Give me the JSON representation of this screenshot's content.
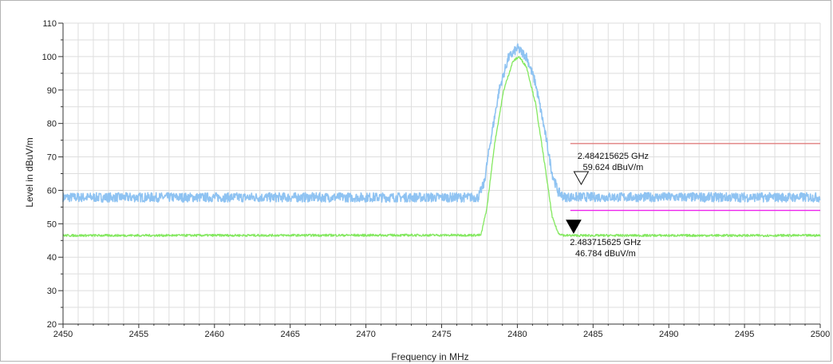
{
  "chart_data": {
    "type": "line",
    "xlabel": "Frequency in MHz",
    "ylabel": "Level in dBuV/m",
    "xlim": [
      2450,
      2500
    ],
    "ylim": [
      20,
      110
    ],
    "x_ticks": [
      "2450",
      "2455",
      "2460",
      "2465",
      "2470",
      "2475",
      "2480",
      "2485",
      "2490",
      "2495",
      "2500"
    ],
    "y_ticks": [
      "20",
      "30",
      "40",
      "50",
      "60",
      "70",
      "80",
      "90",
      "100",
      "110"
    ],
    "grid": true,
    "series": [
      {
        "color": "#8fc3f2",
        "noise_band": 1.4,
        "points": [
          [
            2450,
            57.9
          ],
          [
            2477.4,
            57.9
          ],
          [
            2477.8,
            62
          ],
          [
            2478.2,
            74
          ],
          [
            2478.8,
            90
          ],
          [
            2479.4,
            99.5
          ],
          [
            2480.0,
            102.5
          ],
          [
            2480.6,
            100
          ],
          [
            2481.2,
            92
          ],
          [
            2481.8,
            78
          ],
          [
            2482.3,
            65
          ],
          [
            2482.7,
            59.5
          ],
          [
            2483.1,
            58
          ],
          [
            2500,
            57.9
          ]
        ]
      },
      {
        "color": "#84e860",
        "noise_band": 0.35,
        "points": [
          [
            2450,
            46.5
          ],
          [
            2477.6,
            46.6
          ],
          [
            2478.0,
            55
          ],
          [
            2478.5,
            74
          ],
          [
            2479.1,
            90
          ],
          [
            2479.7,
            98.5
          ],
          [
            2480.1,
            100
          ],
          [
            2480.6,
            97
          ],
          [
            2481.2,
            86
          ],
          [
            2481.8,
            68
          ],
          [
            2482.3,
            52
          ],
          [
            2482.7,
            47.2
          ],
          [
            2483.1,
            46.5
          ],
          [
            2500,
            46.5
          ]
        ]
      }
    ],
    "limit_lines": [
      {
        "color": "#e07f7f",
        "x": [
          2483.5,
          2500
        ],
        "y": 74
      },
      {
        "color": "#ee22ee",
        "x": [
          2483.5,
          2500
        ],
        "y": 54
      }
    ],
    "markers": [
      {
        "type": "open-triangle",
        "x": 2484.215625,
        "y": 59.624,
        "freq_label": "2.484215625 GHz",
        "level_label": "59.624 dBuV/m"
      },
      {
        "type": "filled-triangle",
        "x": 2483.715625,
        "y": 46.784,
        "freq_label": "2.483715625 GHz",
        "level_label": "46.784 dBuV/m"
      }
    ]
  }
}
